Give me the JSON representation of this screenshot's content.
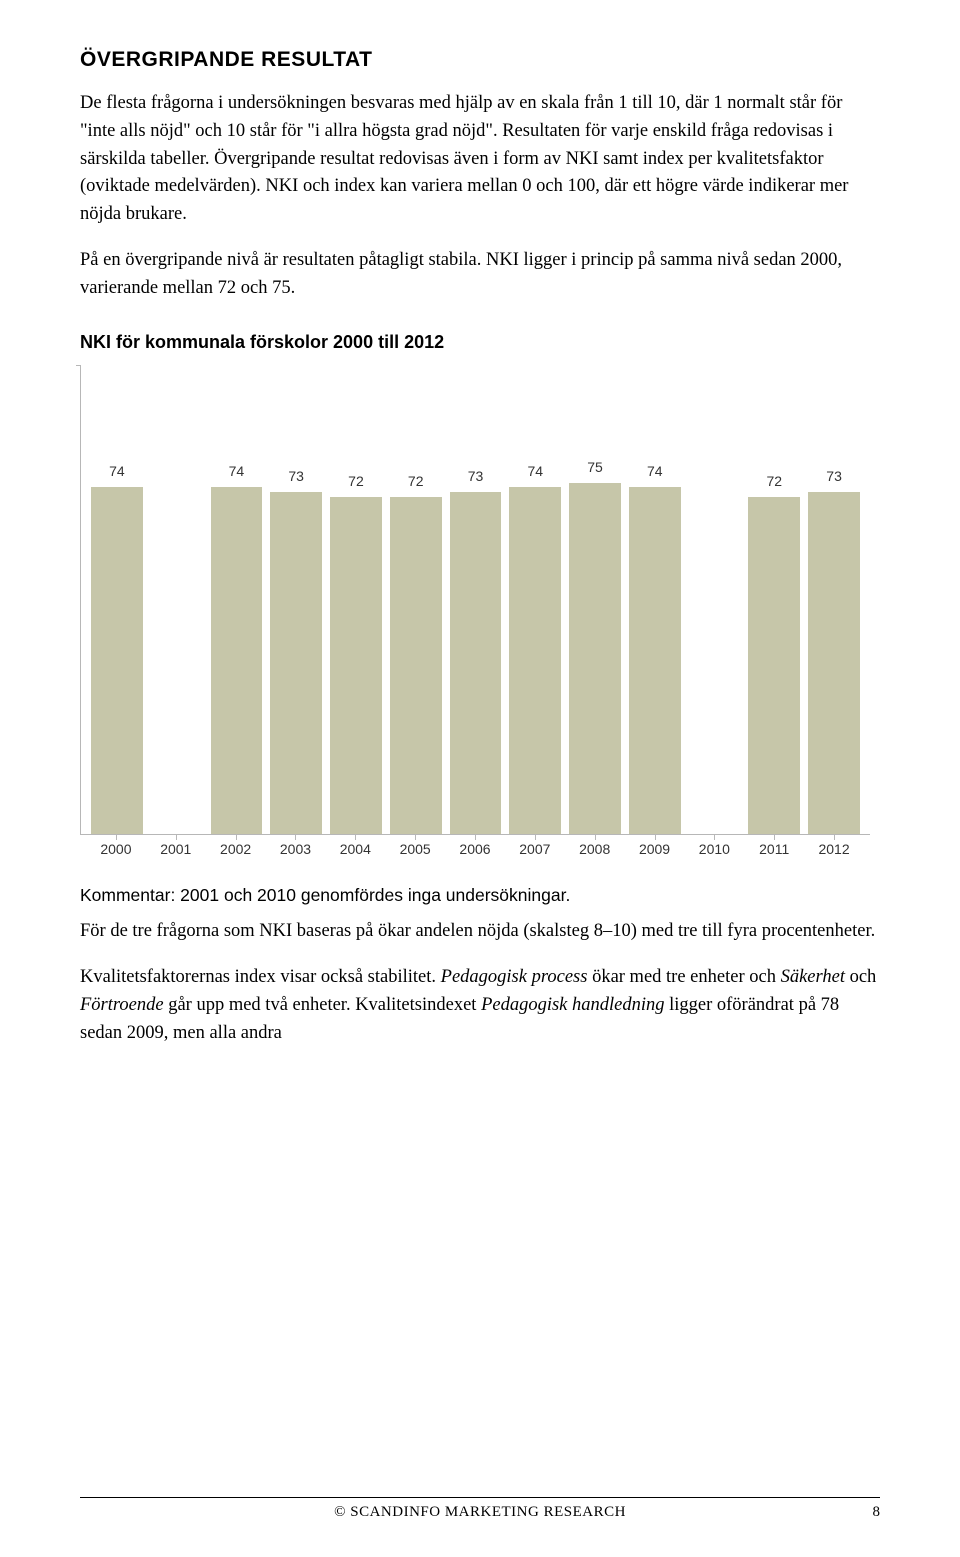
{
  "heading": "ÖVERGRIPANDE RESULTAT",
  "paragraphs": {
    "p1": "De flesta frågorna i undersökningen besvaras med hjälp av en skala från 1 till 10, där 1 normalt står för \"inte alls nöjd\" och 10 står för \"i allra högsta grad nöjd\". Resultaten för varje enskild fråga redovisas i särskilda tabeller. Övergripande resultat redovisas även i form av NKI  samt index per kvalitetsfaktor (oviktade medelvärden). NKI och index kan variera mellan 0 och 100, där ett högre värde indikerar mer nöjda brukare.",
    "p2": "På en övergripande nivå är resultaten påtagligt stabila. NKI ligger i princip på samma nivå sedan 2000, varierande mellan 72 och 75."
  },
  "chart": {
    "title": "NKI för kommunala förskolor 2000 till 2012",
    "type": "bar",
    "categories": [
      "2000",
      "2001",
      "2002",
      "2003",
      "2004",
      "2005",
      "2006",
      "2007",
      "2008",
      "2009",
      "2010",
      "2011",
      "2012"
    ],
    "values": [
      74,
      null,
      74,
      73,
      72,
      72,
      73,
      74,
      75,
      74,
      null,
      72,
      73
    ],
    "ylim": [
      0,
      100
    ],
    "bar_color": "#c6c6a9",
    "axis_color": "#b7b7b7",
    "background_color": "#ffffff",
    "label_fontsize": 14,
    "label_color": "#333333"
  },
  "comment": "Kommentar: 2001 och 2010 genomfördes inga undersökningar.",
  "p3_a": "För de tre frågorna som NKI baseras på ökar andelen nöjda (skalsteg 8–10) med tre till fyra procentenheter.",
  "p4_parts": {
    "a": "Kvalitetsfaktorernas index visar också stabilitet. ",
    "b": "Pedagogisk process",
    "c": " ökar med tre enheter och ",
    "d": "Säkerhet",
    "e": " och ",
    "f": "Förtroende",
    "g": " går upp med två enheter. Kvalitetsindexet ",
    "h": "Pedagogisk handledning",
    "i": " ligger oförändrat på 78 sedan 2009, men alla andra"
  },
  "footer": {
    "copyright": "©  SCANDINFO MARKETING RESEARCH",
    "page": "8"
  }
}
